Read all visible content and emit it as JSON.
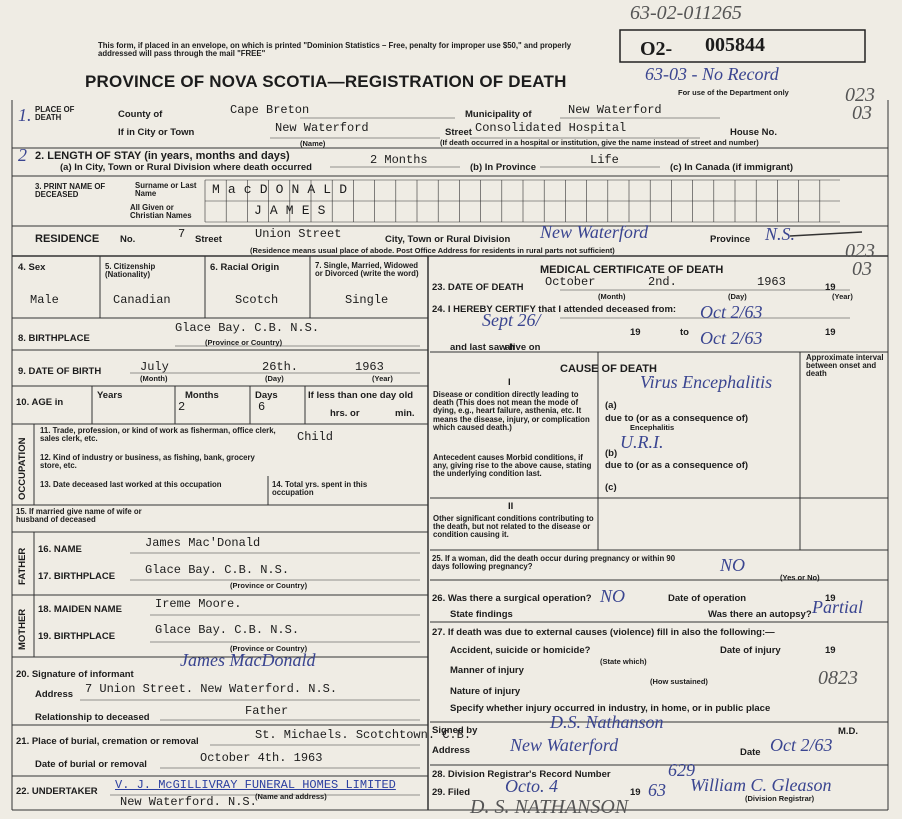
{
  "stamp": {
    "top_number": "63-02-011265",
    "prefix": "O2-",
    "number": "005844",
    "handwritten_code": "63-03 - No Record",
    "dept_use": "For use of the Department only",
    "margin_1": "023",
    "margin_2": "03",
    "margin_3": "023",
    "margin_4": "03"
  },
  "header": {
    "notice": "This form, if placed in an envelope, on which is printed \"Dominion Statistics – Free, penalty for improper use $50,\" and properly addressed will pass through the mail \"FREE\"",
    "title": "PROVINCE OF NOVA SCOTIA—REGISTRATION OF DEATH"
  },
  "place": {
    "num": "1.",
    "label": "PLACE OF DEATH",
    "county_label": "County of",
    "county": "Cape Breton",
    "municipality_label": "Municipality of",
    "municipality": "New Waterford",
    "city_label": "If in City or Town",
    "city": "New Waterford",
    "street_label": "Street",
    "street": "Consolidated Hospital",
    "house_label": "House No.",
    "name_note": "(Name)",
    "hospital_note": "(If death occurred in a hospital or institution, give the name instead of street and number)"
  },
  "stay": {
    "num": "2",
    "label": "2. LENGTH OF STAY (in years, months and days)",
    "a_label": "(a) In City, Town or Rural Division where death occurred",
    "a": "2 Months",
    "b_label": "(b) In Province",
    "b": "Life",
    "c_label": "(c) In Canada (if immigrant)"
  },
  "name": {
    "label": "3. PRINT NAME OF DECEASED",
    "surname_label": "Surname or Last Name",
    "surname": "MacDONALD",
    "given_label": "All Given or Christian Names",
    "given": "JAMES"
  },
  "residence": {
    "label": "RESIDENCE",
    "no_label": "No.",
    "no": "7",
    "street_label": "Street",
    "street": "Union Street",
    "city_label": "City, Town or Rural Division",
    "city": "New Waterford",
    "province_label": "Province",
    "province": "N.S.",
    "note": "(Residence means usual place of abode. Post Office Address for residents in rural parts not sufficient)"
  },
  "personal": {
    "sex_label": "4. Sex",
    "sex": "Male",
    "citizenship_label": "5. Citizenship (Nationality)",
    "citizenship": "Canadian",
    "racial_label": "6. Racial Origin",
    "racial": "Scotch",
    "marital_label": "7. Single, Married, Widowed or Divorced (write the word)",
    "marital": "Single"
  },
  "birthplace": {
    "label": "8. BIRTHPLACE",
    "value": "Glace Bay.     C.B.     N.S.",
    "note": "(Province or Country)"
  },
  "birth_date": {
    "label": "9. DATE OF BIRTH",
    "month": "July",
    "day": "26th.",
    "year": "1963",
    "month_note": "(Month)",
    "day_note": "(Day)",
    "year_note": "(Year)"
  },
  "age": {
    "label": "10. AGE in",
    "years_label": "Years",
    "months_label": "Months",
    "months": "2",
    "days_label": "Days",
    "days": "6",
    "less_label": "If less than one day old",
    "hrs_label": "hrs. or",
    "min_label": "min."
  },
  "occupation": {
    "side": "OCCUPATION",
    "trade_label": "11. Trade, profession, or kind of work as fisherman, office clerk, sales clerk, etc.",
    "trade": "Child",
    "industry_label": "12. Kind of industry or business, as fishing, bank, grocery store, etc.",
    "last_worked_label": "13. Date deceased last worked at this occupation",
    "total_label": "14. Total yrs. spent in this occupation"
  },
  "spouse": {
    "label": "15. If married give name of wife or husband of deceased"
  },
  "father": {
    "side": "FATHER",
    "name_label": "16. NAME",
    "name": "James Mac'Donald",
    "birthplace_label": "17. BIRTHPLACE",
    "birthplace": "Glace Bay.    C.B.    N.S.",
    "note": "(Province or Country)"
  },
  "mother": {
    "side": "MOTHER",
    "name_label": "18. MAIDEN NAME",
    "name": "Ireme Moore.",
    "birthplace_label": "19. BIRTHPLACE",
    "birthplace": "Glace Bay.    C.B.    N.S.",
    "note": "(Province or Country)"
  },
  "informant": {
    "label": "20. Signature of informant",
    "signature": "James MacDonald",
    "address_label": "Address",
    "address": "7 Union Street.   New Waterford. N.S.",
    "relation_label": "Relationship to deceased",
    "relation": "Father"
  },
  "burial": {
    "label": "21. Place of burial, cremation or removal",
    "place": "St. Michaels. Scotchtown. C.B.",
    "date_label": "Date of burial or removal",
    "date": "October 4th. 1963"
  },
  "undertaker": {
    "label": "22. UNDERTAKER",
    "name": "V. J. McGILLIVRAY FUNERAL HOMES LIMITED",
    "address": "New Waterford. N.S.",
    "note": "(Name and address)"
  },
  "medical": {
    "title": "MEDICAL CERTIFICATE OF DEATH",
    "date_label": "23. DATE OF DEATH",
    "month": "October",
    "day": "2nd.",
    "year": "1963",
    "nineteen": "19",
    "month_note": "(Month)",
    "day_note": "(Day)",
    "year_note": "(Year)"
  },
  "attendance": {
    "label": "24. I HEREBY CERTIFY that I attended deceased from:",
    "from": "Sept 26/",
    "nineteen_1": "19",
    "to_label": "to",
    "to": "Oct 2/63",
    "nineteen_2": "19",
    "last_saw_label": "and last saw h",
    "alive_label": "alive on",
    "last_saw": "Oct 2/63"
  },
  "cause": {
    "title": "CAUSE OF DEATH",
    "interval_label": "Approximate interval between onset and death",
    "part_1": "I",
    "direct_label": "Disease or condition directly leading to death (This does not mean the mode of dying, e.g., heart failure, asthenia, etc. It means the disease, injury, or complication which caused death.)",
    "a_label": "(a)",
    "a_due": "due to (or as a consequence of)",
    "a": "Virus Encephalitis",
    "a_note": "Encephalitis",
    "b_label": "(b)",
    "b_due": "due to (or as a consequence of)",
    "b": "U.R.I.",
    "antecedent_label": "Antecedent causes Morbid conditions, if any, giving rise to the above cause, stating the underlying condition last.",
    "c_label": "(c)",
    "part_2": "II",
    "other_label": "Other significant conditions contributing to the death, but not related to the disease or condition causing it."
  },
  "pregnancy": {
    "label": "25. If a woman, did the death occur during pregnancy or within 90 days following pregnancy?",
    "value": "NO",
    "note": "(Yes or No)"
  },
  "operation": {
    "label": "26. Was there a surgical operation?",
    "value": "NO",
    "date_label": "Date of operation",
    "nineteen": "19",
    "findings_label": "State findings",
    "autopsy_label": "Was there an autopsy?",
    "autopsy": "Partial"
  },
  "external": {
    "label": "27. If death was due to external causes (violence) fill in also the following:—",
    "accident_label": "Accident, suicide or homicide?",
    "state_note": "(State which)",
    "injury_date_label": "Date of injury",
    "nineteen": "19",
    "manner_label": "Manner of injury",
    "how_note": "(How sustained)",
    "nature_label": "Nature of injury",
    "code": "0823",
    "specify_label": "Specify whether injury occurred in industry, in home, or in public place"
  },
  "signature": {
    "signed_label": "Signed by",
    "signed": "D.S. Nathanson",
    "md": "M.D.",
    "address_label": "Address",
    "address": "New Waterford",
    "date_label": "Date",
    "date": "Oct 2/63"
  },
  "registrar": {
    "record_label": "28. Division Registrar's Record Number",
    "record": "629",
    "filed_label": "29. Filed",
    "filed": "Octo. 4",
    "nineteen": "19",
    "year": "63",
    "registrar": "William C. Gleason",
    "registrar_note": "(Division Registrar)",
    "bottom_name": "D. S. NATHANSON"
  }
}
